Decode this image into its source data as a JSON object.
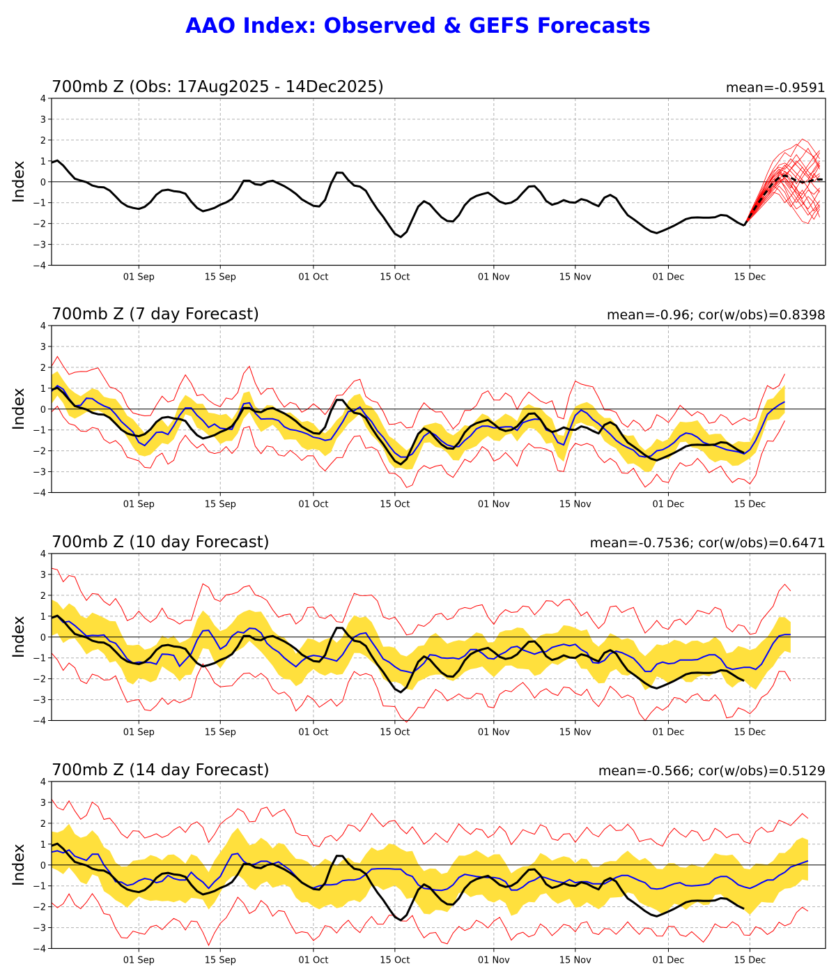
{
  "title": "AAO Index: Observed & GEFS Forecasts",
  "chart_data": [
    {
      "type": "line",
      "title": "700mb Z (Obs: 17Aug2025 - 14Dec2025)",
      "stat": "mean=-0.9591",
      "ylabel": "Index",
      "ylim": [
        -4,
        4
      ],
      "yticks": [
        "4",
        "3",
        "2",
        "1",
        "0",
        "−1",
        "−2",
        "−3",
        "−4"
      ],
      "ytick_values": [
        4,
        3,
        2,
        1,
        0,
        -1,
        -2,
        -3,
        -4
      ],
      "xticks": [
        "01 Sep",
        "15 Sep",
        "01 Oct",
        "15 Oct",
        "01 Nov",
        "15 Nov",
        "01 Dec",
        "15 Dec"
      ],
      "xtick_days": [
        15,
        29,
        45,
        59,
        76,
        90,
        106,
        120
      ],
      "x_start": "17 Aug 2025",
      "x_range_days": [
        0,
        133
      ],
      "grid": true,
      "observed": [
        0.92,
        1.02,
        0.78,
        0.45,
        0.15,
        0.06,
        -0.02,
        -0.18,
        -0.25,
        -0.27,
        -0.42,
        -0.7,
        -0.99,
        -1.17,
        -1.25,
        -1.3,
        -1.2,
        -0.97,
        -0.62,
        -0.42,
        -0.38,
        -0.45,
        -0.48,
        -0.57,
        -0.95,
        -1.25,
        -1.41,
        -1.34,
        -1.25,
        -1.1,
        -0.99,
        -0.82,
        -0.45,
        0.05,
        0.05,
        -0.12,
        -0.15,
        0.0,
        0.05,
        -0.08,
        -0.21,
        -0.38,
        -0.58,
        -0.84,
        -1.0,
        -1.15,
        -1.18,
        -0.87,
        -0.1,
        0.44,
        0.43,
        0.08,
        -0.18,
        -0.23,
        -0.43,
        -0.9,
        -1.32,
        -1.68,
        -2.1,
        -2.49,
        -2.65,
        -2.4,
        -1.8,
        -1.19,
        -0.93,
        -1.08,
        -1.4,
        -1.7,
        -1.88,
        -1.9,
        -1.6,
        -1.12,
        -0.83,
        -0.68,
        -0.59,
        -0.52,
        -0.72,
        -0.95,
        -1.05,
        -1.0,
        -0.83,
        -0.52,
        -0.23,
        -0.21,
        -0.5,
        -0.92,
        -1.1,
        -1.02,
        -0.88,
        -0.98,
        -1.0,
        -0.83,
        -0.9,
        -1.05,
        -1.17,
        -0.76,
        -0.63,
        -0.79,
        -1.22,
        -1.6,
        -1.79,
        -2.0,
        -2.21,
        -2.38,
        -2.46,
        -2.35,
        -2.23,
        -2.1,
        -1.95,
        -1.79,
        -1.72,
        -1.71,
        -1.72,
        -1.72,
        -1.7,
        -1.59,
        -1.62,
        -1.79,
        -1.97,
        -2.1
      ],
      "ensemble_start_day": 119,
      "ensemble_mean": [
        -2.1,
        -1.65,
        -1.2,
        -0.8,
        -0.4,
        -0.05,
        0.2,
        0.3,
        0.2,
        0.05,
        -0.02,
        0.0,
        0.1,
        0.12,
        0.1
      ],
      "ensemble_members": [
        [
          -2.1,
          -1.5,
          -0.9,
          -0.3,
          0.4,
          1.0,
          1.3,
          1.5,
          1.6,
          1.8,
          1.6,
          1.4,
          1.2,
          1.5
        ],
        [
          -2.1,
          -1.6,
          -1.1,
          -0.6,
          0.1,
          0.6,
          1.0,
          1.4,
          1.2,
          1.7,
          2.05,
          1.9,
          1.5,
          1.1
        ],
        [
          -2.1,
          -1.7,
          -1.3,
          -0.9,
          -0.4,
          0.1,
          0.4,
          0.3,
          0.6,
          0.9,
          1.2,
          1.6,
          1.1,
          0.6
        ],
        [
          -2.1,
          -1.8,
          -1.5,
          -1.2,
          -0.9,
          -0.6,
          -0.2,
          -0.5,
          -1.1,
          -1.5,
          -1.9,
          -2.0,
          -1.5,
          -1.2
        ],
        [
          -2.1,
          -1.6,
          -1.2,
          -0.7,
          -0.2,
          0.3,
          0.6,
          0.5,
          0.1,
          -0.4,
          -0.6,
          -0.2,
          0.3,
          0.8
        ],
        [
          -2.1,
          -1.7,
          -1.2,
          -0.8,
          -0.5,
          -0.2,
          0.2,
          -0.3,
          -0.9,
          -1.3,
          -1.1,
          -0.7,
          -1.0,
          -1.7
        ],
        [
          -2.1,
          -1.5,
          -1.0,
          -0.5,
          0.0,
          0.4,
          0.8,
          0.9,
          0.7,
          0.4,
          0.1,
          -0.3,
          -0.8,
          -1.2
        ],
        [
          -2.1,
          -1.65,
          -1.3,
          -0.95,
          -0.6,
          -0.3,
          0.0,
          0.2,
          0.6,
          1.0,
          0.7,
          0.3,
          0.5,
          0.9
        ],
        [
          -2.1,
          -1.6,
          -1.1,
          -0.7,
          -0.3,
          0.1,
          0.2,
          0.0,
          -0.4,
          -0.8,
          -1.2,
          -1.6,
          -1.3,
          -0.9
        ],
        [
          -2.1,
          -1.7,
          -1.35,
          -1.0,
          -0.7,
          -0.3,
          0.1,
          0.5,
          0.3,
          -0.1,
          0.4,
          0.8,
          1.2,
          0.7
        ],
        [
          -2.1,
          -1.55,
          -1.0,
          -0.4,
          0.1,
          0.5,
          0.7,
          0.6,
          0.9,
          1.3,
          0.9,
          0.5,
          0.2,
          0.4
        ],
        [
          -2.1,
          -1.75,
          -1.45,
          -1.1,
          -0.8,
          -0.5,
          -0.6,
          -1.0,
          -0.7,
          -0.3,
          -0.9,
          -1.4,
          -1.8,
          -1.3
        ],
        [
          -2.1,
          -1.6,
          -1.15,
          -0.75,
          -0.35,
          0.0,
          0.3,
          0.4,
          0.0,
          -0.3,
          0.2,
          0.6,
          0.9,
          1.4
        ],
        [
          -2.1,
          -1.7,
          -1.25,
          -0.85,
          -0.45,
          -0.1,
          0.35,
          0.7,
          1.1,
          0.8,
          0.5,
          0.2,
          -0.2,
          -0.5
        ],
        [
          -2.1,
          -1.65,
          -1.2,
          -0.8,
          -0.5,
          -0.2,
          -0.4,
          -0.8,
          -1.2,
          -0.8,
          -0.4,
          -0.9,
          -1.4,
          -1.1
        ],
        [
          -2.1,
          -1.6,
          -1.1,
          -0.6,
          -0.2,
          0.2,
          0.5,
          0.1,
          -0.3,
          0.3,
          0.7,
          0.3,
          0.0,
          0.3
        ],
        [
          -2.1,
          -1.7,
          -1.3,
          -0.9,
          -0.6,
          -0.2,
          0.1,
          -0.2,
          -0.6,
          -1.0,
          -0.6,
          -0.2,
          0.4,
          0.0
        ],
        [
          -2.1,
          -1.55,
          -1.05,
          -0.55,
          -0.1,
          0.3,
          0.6,
          0.2,
          -0.2,
          -0.5,
          -0.8,
          -0.4,
          -0.6,
          -0.3
        ],
        [
          -2.1,
          -1.75,
          -1.4,
          -1.05,
          -0.7,
          -0.4,
          -0.1,
          0.2,
          -0.1,
          -0.6,
          -1.0,
          -1.3,
          -0.9,
          -0.4
        ],
        [
          -2.1,
          -1.6,
          -1.1,
          -0.65,
          -0.2,
          0.25,
          0.45,
          0.8,
          0.5,
          0.2,
          -0.1,
          0.1,
          0.6,
          1.0
        ]
      ]
    },
    {
      "type": "line",
      "title": "700mb Z (7 day Forecast)",
      "stat": "mean=-0.96; cor(w/obs)=0.8398",
      "ylabel": "Index",
      "ylim": [
        -4,
        4
      ],
      "forecast_mean": [
        0.85,
        1.12,
        0.95,
        0.5,
        0.15,
        0.18,
        0.52,
        0.5,
        0.3,
        0.15,
        0.05,
        -0.25,
        -0.6,
        -0.85,
        -1.1,
        -1.6,
        -1.75,
        -1.45,
        -1.12,
        -1.1,
        -1.22,
        -0.8,
        -0.3,
        0.05,
        0.05,
        -0.3,
        -0.55,
        -0.88,
        -0.72,
        -0.92,
        -0.95,
        -0.97,
        -0.4,
        0.25,
        0.3,
        -0.2,
        -0.48,
        -0.47,
        -0.47,
        -0.55,
        -0.85,
        -0.98,
        -1.02,
        -1.1,
        -1.2,
        -1.35,
        -1.4,
        -1.5,
        -1.45,
        -1.05,
        -0.62,
        -0.12,
        -0.08,
        0.1,
        -0.3,
        -0.6,
        -1.05,
        -1.35,
        -1.75,
        -2.1,
        -2.3,
        -2.3,
        -2.15,
        -1.75,
        -1.3,
        -1.1,
        -1.25,
        -1.52,
        -1.72,
        -1.8,
        -1.8,
        -1.5,
        -1.28,
        -0.95,
        -0.82,
        -0.82,
        -0.9,
        -0.88,
        -0.85,
        -0.85,
        -1.02,
        -0.65,
        -0.55,
        -0.48,
        -0.5,
        -1.0,
        -1.1,
        -1.6,
        -1.72,
        -1.0,
        -0.3,
        -0.05,
        -0.2,
        -0.5,
        -0.7,
        -0.95,
        -1.2,
        -1.5,
        -1.7,
        -1.85,
        -1.97,
        -2.25,
        -2.3,
        -2.25,
        -2.0,
        -1.95,
        -1.8,
        -1.6,
        -1.3,
        -1.15,
        -1.2,
        -1.35,
        -1.6,
        -1.7,
        -1.75,
        -1.85,
        -1.95,
        -2.0,
        -2.05,
        -2.15,
        -1.95,
        -1.5,
        -0.9,
        -0.25,
        0.0,
        0.2,
        0.35
      ],
      "band_halfwidth": 0.55,
      "min_max_halfwidth": 1.3
    },
    {
      "type": "line",
      "title": "700mb Z (10 day Forecast)",
      "stat": "mean=-0.7536; cor(w/obs)=0.6471",
      "ylabel": "Index",
      "ylim": [
        -4,
        4
      ],
      "forecast_mean": [
        0.9,
        1.0,
        0.7,
        0.75,
        0.55,
        0.3,
        0.05,
        0.08,
        0.07,
        0.1,
        -0.2,
        -0.3,
        -0.65,
        -1.05,
        -1.25,
        -1.2,
        -1.22,
        -1.22,
        -1.3,
        -0.82,
        -0.83,
        -0.88,
        -1.4,
        -1.1,
        -0.8,
        -0.15,
        0.3,
        0.32,
        -0.1,
        -0.58,
        -0.4,
        0.05,
        0.25,
        0.2,
        0.42,
        0.4,
        0.2,
        -0.3,
        -0.55,
        -0.72,
        -1.0,
        -1.22,
        -1.42,
        -1.15,
        -0.95,
        -0.88,
        -0.92,
        -1.0,
        -1.07,
        -1.15,
        -0.85,
        -0.4,
        0.0,
        0.15,
        0.2,
        -0.22,
        -0.62,
        -1.05,
        -1.2,
        -1.42,
        -1.6,
        -1.65,
        -1.72,
        -1.5,
        -1.25,
        -0.85,
        -0.88,
        -1.0,
        -1.02,
        -1.0,
        -1.05,
        -0.9,
        -0.6,
        -0.6,
        -0.78,
        -1.02,
        -1.05,
        -0.85,
        -0.72,
        -0.5,
        -0.45,
        -0.62,
        -0.72,
        -0.82,
        -0.72,
        -0.7,
        -0.5,
        -0.42,
        -0.35,
        -0.42,
        -0.35,
        -0.6,
        -0.75,
        -1.22,
        -1.25,
        -1.12,
        -0.8,
        -0.68,
        -0.75,
        -0.88,
        -1.02,
        -1.32,
        -1.65,
        -1.65,
        -1.3,
        -1.2,
        -1.28,
        -1.25,
        -1.1,
        -1.1,
        -1.1,
        -1.08,
        -0.95,
        -0.85,
        -0.85,
        -1.05,
        -1.45,
        -1.55,
        -1.5,
        -1.45,
        -1.45,
        -1.55,
        -1.3,
        -0.8,
        -0.3,
        0.05,
        0.12,
        0.12
      ],
      "band_halfwidth": 0.85,
      "min_max_halfwidth": 2.0
    },
    {
      "type": "line",
      "title": "700mb Z (14 day Forecast)",
      "stat": "mean=-0.566; cor(w/obs)=0.5129",
      "ylabel": "Index",
      "ylim": [
        -4,
        4
      ],
      "forecast_mean": [
        0.62,
        0.68,
        0.58,
        0.72,
        0.42,
        0.32,
        0.22,
        0.52,
        0.52,
        0.0,
        -0.35,
        -0.8,
        -0.82,
        -0.98,
        -0.92,
        -0.75,
        -0.65,
        -0.7,
        -0.85,
        -0.78,
        -0.5,
        -0.65,
        -0.72,
        -0.72,
        -0.35,
        -0.62,
        -0.82,
        -1.12,
        -0.8,
        -0.55,
        0.0,
        0.5,
        0.55,
        0.18,
        0.0,
        0.05,
        0.18,
        0.18,
        0.05,
        0.15,
        -0.05,
        -0.25,
        -0.55,
        -0.85,
        -1.02,
        -1.1,
        -1.0,
        -0.95,
        -0.95,
        -0.92,
        -0.75,
        -0.72,
        -0.72,
        -0.65,
        -0.45,
        -0.2,
        -0.18,
        -0.18,
        -0.18,
        -0.2,
        -0.2,
        -0.45,
        -0.55,
        -0.95,
        -1.12,
        -1.15,
        -1.2,
        -1.22,
        -1.15,
        -0.95,
        -0.6,
        -0.45,
        -0.5,
        -0.55,
        -0.58,
        -0.6,
        -0.6,
        -0.65,
        -0.8,
        -1.2,
        -1.2,
        -1.05,
        -0.82,
        -0.72,
        -0.55,
        -0.62,
        -0.72,
        -0.8,
        -0.85,
        -0.7,
        -0.85,
        -0.8,
        -0.8,
        -0.9,
        -0.9,
        -0.9,
        -0.75,
        -0.6,
        -0.5,
        -0.5,
        -0.62,
        -0.75,
        -0.85,
        -1.12,
        -1.15,
        -1.12,
        -1.0,
        -0.9,
        -0.85,
        -0.98,
        -1.0,
        -0.98,
        -0.95,
        -0.9,
        -0.65,
        -0.55,
        -0.55,
        -0.72,
        -0.95,
        -1.05,
        -1.12,
        -1.0,
        -0.85,
        -0.72,
        -0.72,
        -0.5,
        -0.35,
        -0.1,
        0.0,
        0.1,
        0.2
      ],
      "band_halfwidth": 1.0,
      "min_max_halfwidth": 2.3
    }
  ]
}
